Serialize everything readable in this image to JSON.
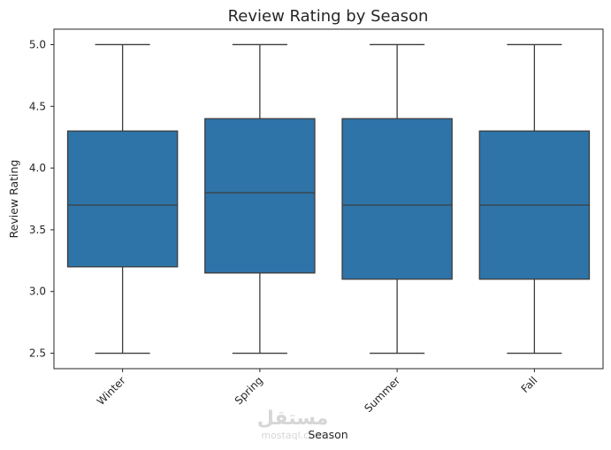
{
  "chart_data": {
    "type": "box",
    "title": "Review Rating by Season",
    "xlabel": "Season",
    "ylabel": "Review Rating",
    "categories": [
      "Winter",
      "Spring",
      "Summer",
      "Fall"
    ],
    "boxes": [
      {
        "category": "Winter",
        "whisker_low": 2.5,
        "q1": 3.2,
        "median": 3.7,
        "q3": 4.3,
        "whisker_high": 5.0
      },
      {
        "category": "Spring",
        "whisker_low": 2.5,
        "q1": 3.15,
        "median": 3.8,
        "q3": 4.4,
        "whisker_high": 5.0
      },
      {
        "category": "Summer",
        "whisker_low": 2.5,
        "q1": 3.1,
        "median": 3.7,
        "q3": 4.4,
        "whisker_high": 5.0
      },
      {
        "category": "Fall",
        "whisker_low": 2.5,
        "q1": 3.1,
        "median": 3.7,
        "q3": 4.3,
        "whisker_high": 5.0
      }
    ],
    "yticks": [
      2.5,
      3.0,
      3.5,
      4.0,
      4.5,
      5.0
    ],
    "ytick_labels": [
      "2.5",
      "3.0",
      "3.5",
      "4.0",
      "4.5",
      "5.0"
    ],
    "ylim": [
      2.375,
      5.125
    ],
    "grid": false,
    "colors": {
      "box_fill": "#2e74a8",
      "line": "#3d3d3d",
      "frame": "#262626"
    }
  },
  "watermark": {
    "logo_text": "مستقل",
    "site_text": "mostaql.com"
  }
}
